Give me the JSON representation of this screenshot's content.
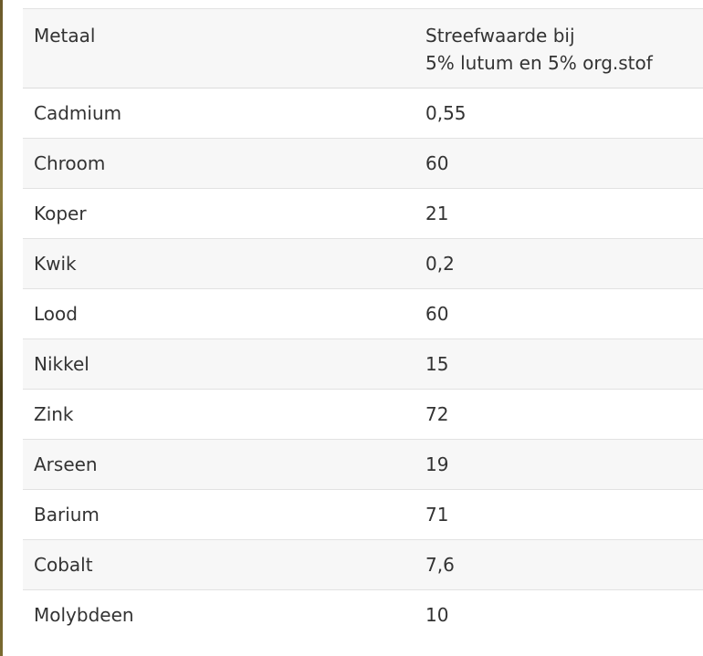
{
  "table": {
    "headers": {
      "metal": "Metaal",
      "target_line1": "Streefwaarde bij",
      "target_line2": "5% lutum en 5% org.stof"
    },
    "rows": [
      {
        "metal": "Cadmium",
        "value": "0,55"
      },
      {
        "metal": "Chroom",
        "value": "60"
      },
      {
        "metal": "Koper",
        "value": "21"
      },
      {
        "metal": "Kwik",
        "value": "0,2"
      },
      {
        "metal": "Lood",
        "value": "60"
      },
      {
        "metal": "Nikkel",
        "value": "15"
      },
      {
        "metal": "Zink",
        "value": "72"
      },
      {
        "metal": "Arseen",
        "value": "19"
      },
      {
        "metal": "Barium",
        "value": "71"
      },
      {
        "metal": "Cobalt",
        "value": "7,6"
      },
      {
        "metal": "Molybdeen",
        "value": "10"
      }
    ]
  }
}
